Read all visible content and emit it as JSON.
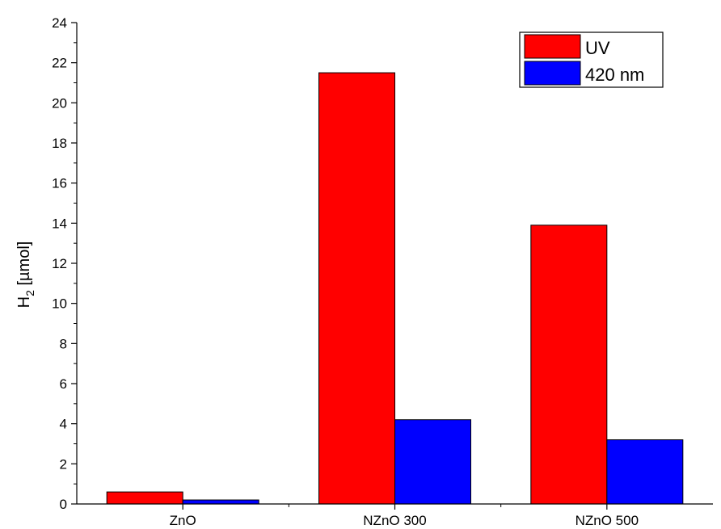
{
  "chart_data": {
    "type": "bar",
    "categories": [
      "ZnO",
      "NZnO  300",
      "NZnO  500"
    ],
    "series": [
      {
        "name": "UV",
        "values": [
          0.6,
          21.5,
          13.9
        ],
        "color": "#ff0000"
      },
      {
        "name": "420 nm",
        "values": [
          0.2,
          4.2,
          3.2
        ],
        "color": "#0000ff"
      }
    ],
    "ylabel_main": "H",
    "ylabel_sub": "2",
    "ylabel_unit": " [µmol]",
    "yticks": [
      "0",
      "2",
      "4",
      "6",
      "8",
      "10",
      "12",
      "14",
      "16",
      "18",
      "20",
      "22",
      "24"
    ],
    "ylim": [
      0,
      24
    ],
    "legend_position": "top-right",
    "grid": false
  }
}
